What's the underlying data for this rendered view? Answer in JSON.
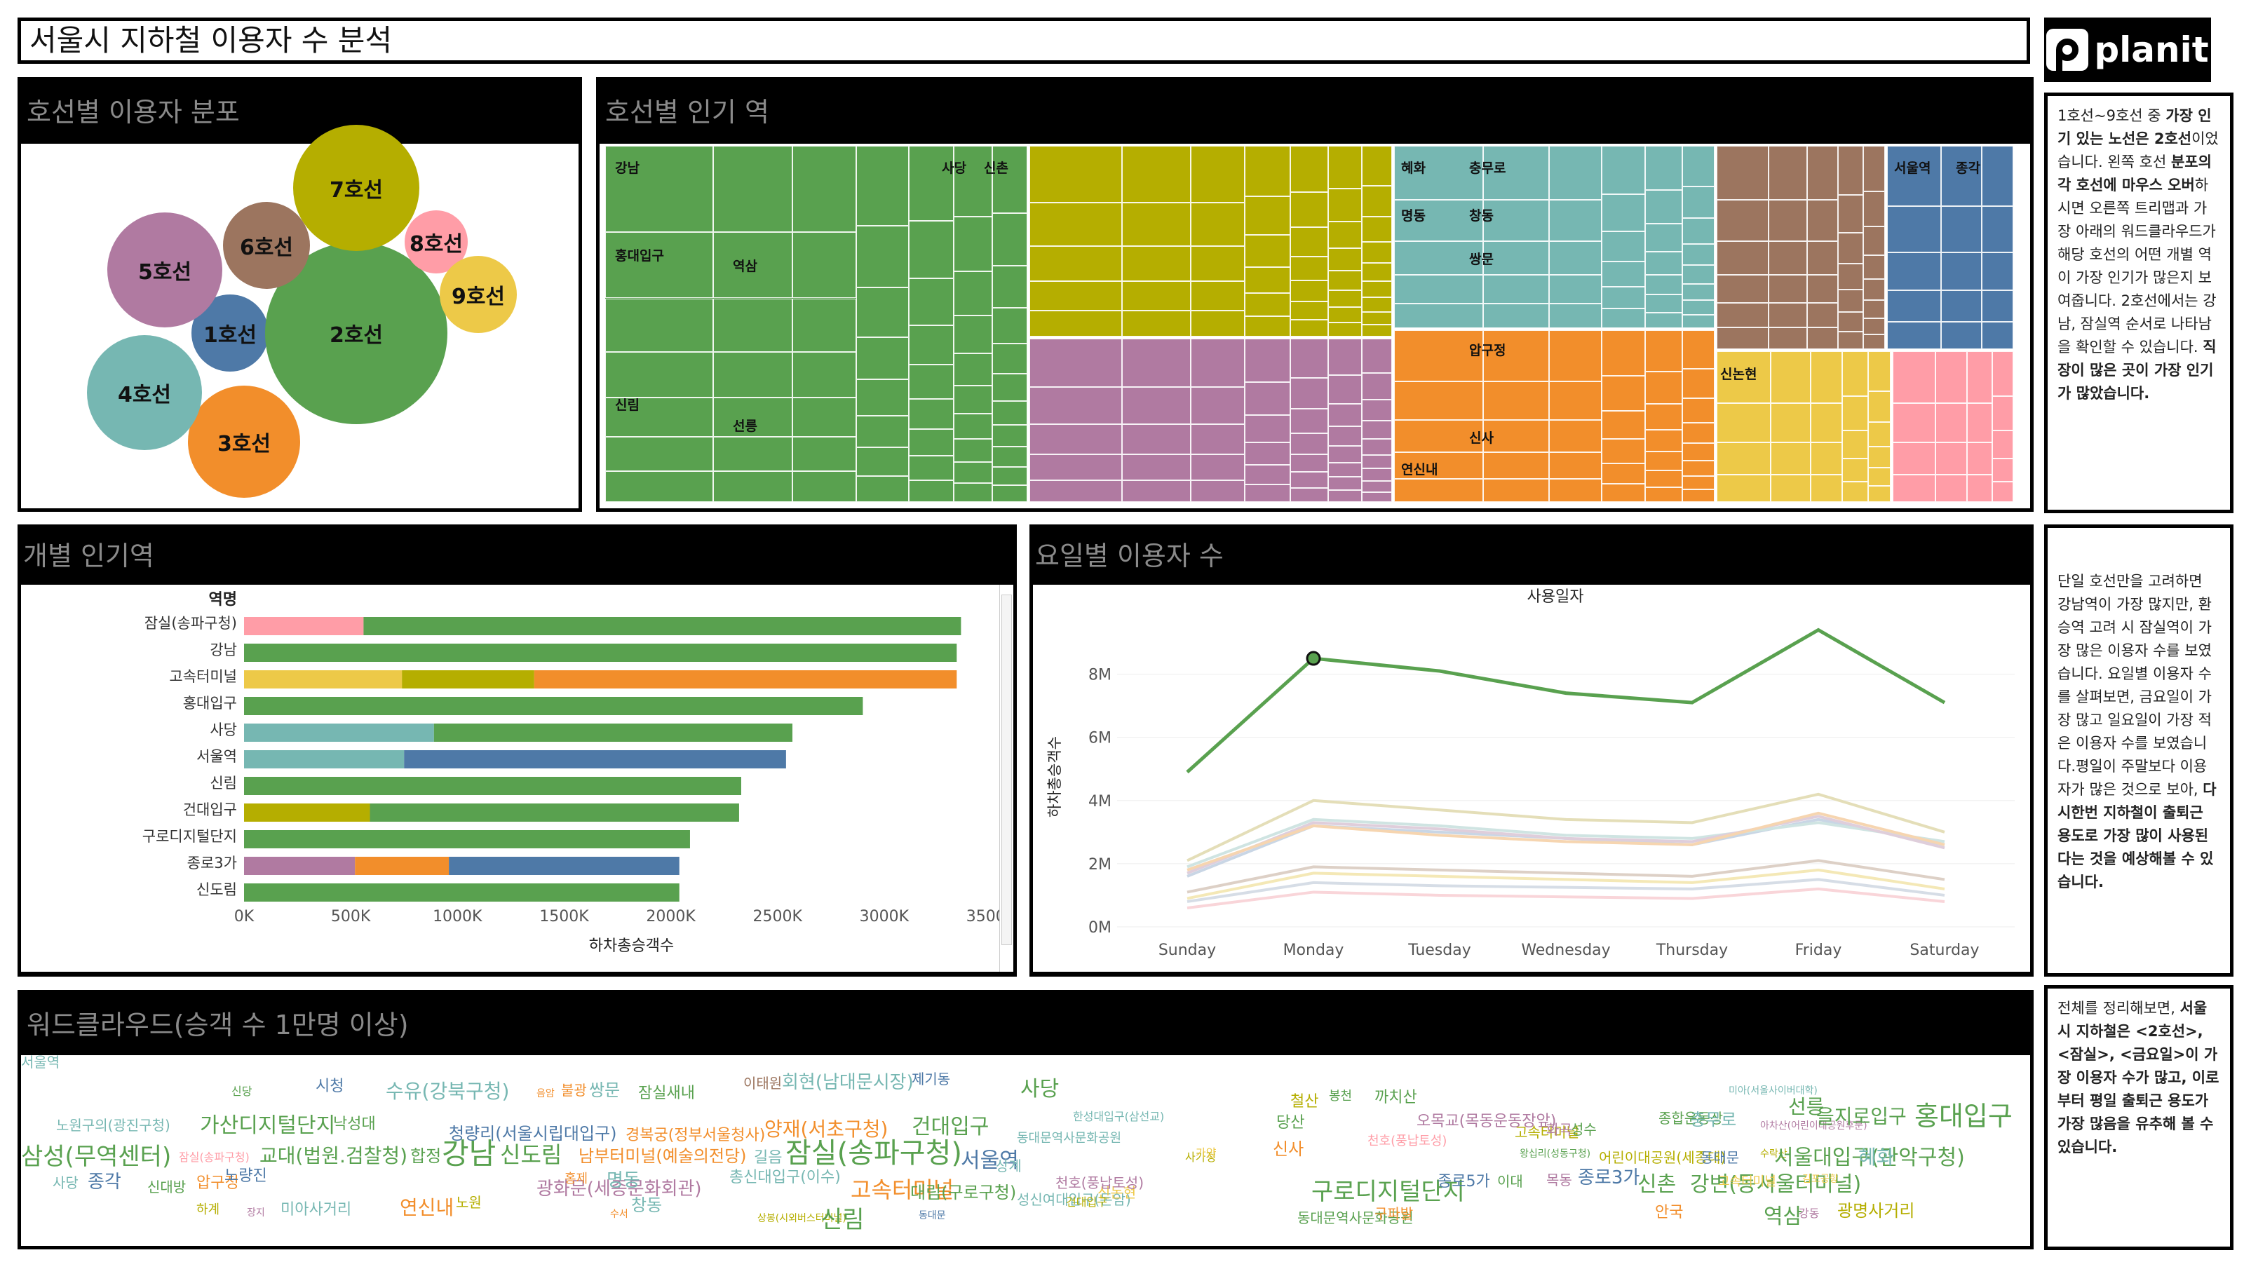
{
  "title": "서울시 지하철 이용자 수 분석",
  "logo": {
    "text": "planit"
  },
  "line_dist": {
    "header": "호선별 이용자 분포",
    "bubbles": [
      {
        "label": "1호선",
        "color": "#4e79a7"
      },
      {
        "label": "2호선",
        "color": "#59a14f"
      },
      {
        "label": "3호선",
        "color": "#f28e2b"
      },
      {
        "label": "4호선",
        "color": "#76b7b2"
      },
      {
        "label": "5호선",
        "color": "#b07aa1"
      },
      {
        "label": "6호선",
        "color": "#9c755f"
      },
      {
        "label": "7호선",
        "color": "#b5ae00"
      },
      {
        "label": "8호선",
        "color": "#ff9da7"
      },
      {
        "label": "9호선",
        "color": "#edc948"
      }
    ]
  },
  "treemap": {
    "header": "호선별 인기 역",
    "labels": [
      "강남",
      "사당",
      "신촌",
      "홍대입구",
      "역삼",
      "신림",
      "선릉",
      "혜화",
      "충무로",
      "명동",
      "창동",
      "쌍문",
      "압구정",
      "신사",
      "연신내",
      "서울역",
      "종각",
      "신논현"
    ]
  },
  "desc1": {
    "parts": [
      {
        "t": "1호선~9호선 중 ",
        "b": false
      },
      {
        "t": "가장 인기 있는 노선은 2호선",
        "b": true
      },
      {
        "t": "이었습니다. 왼쪽 호선 ",
        "b": false
      },
      {
        "t": "분포의 각 호선에 마우스 오버",
        "b": true
      },
      {
        "t": "하시면 오른쪽 트리맵과 가장 아래의 워드클라우드가 해당 호선의 어떤 개별 역이 가장 인기가 많은지 보여줍니다. 2호선에서는 강남, 잠실역 순서로 나타남을 확인할 수 있습니다. ",
        "b": false
      },
      {
        "t": "직장이 많은 곳이 가장 인기가 많았습니다.",
        "b": true
      }
    ]
  },
  "bars": {
    "header": "개별 인기역",
    "axis_header": "역명",
    "xlabel": "하차총승객수",
    "ticks": [
      "0K",
      "500K",
      "1000K",
      "1500K",
      "2000K",
      "2500K",
      "3000K",
      "3500K"
    ],
    "chart_data": {
      "type": "bar",
      "orientation": "horizontal",
      "stacked": true,
      "xlim": [
        0,
        3500000
      ],
      "categories": [
        "잠실(송파구청)",
        "강남",
        "고속터미널",
        "홍대입구",
        "사당",
        "서울역",
        "신림",
        "건대입구",
        "구로디지털단지",
        "종로3가",
        "신도림"
      ],
      "rows": [
        {
          "name": "잠실(송파구청)",
          "segments": [
            {
              "line": "8호선",
              "value": 560000
            },
            {
              "line": "2호선",
              "value": 2800000
            }
          ]
        },
        {
          "name": "강남",
          "segments": [
            {
              "line": "2호선",
              "value": 3340000
            }
          ]
        },
        {
          "name": "고속터미널",
          "segments": [
            {
              "line": "9호선",
              "value": 740000
            },
            {
              "line": "7호선",
              "value": 620000
            },
            {
              "line": "3호선",
              "value": 1980000
            }
          ]
        },
        {
          "name": "홍대입구",
          "segments": [
            {
              "line": "2호선",
              "value": 2900000
            }
          ]
        },
        {
          "name": "사당",
          "segments": [
            {
              "line": "4호선",
              "value": 890000
            },
            {
              "line": "2호선",
              "value": 1680000
            }
          ]
        },
        {
          "name": "서울역",
          "segments": [
            {
              "line": "4호선",
              "value": 750000
            },
            {
              "line": "1호선",
              "value": 1790000
            }
          ]
        },
        {
          "name": "신림",
          "segments": [
            {
              "line": "2호선",
              "value": 2330000
            }
          ]
        },
        {
          "name": "건대입구",
          "segments": [
            {
              "line": "7호선",
              "value": 590000
            },
            {
              "line": "2호선",
              "value": 1730000
            }
          ]
        },
        {
          "name": "구로디지털단지",
          "segments": [
            {
              "line": "2호선",
              "value": 2090000
            }
          ]
        },
        {
          "name": "종로3가",
          "segments": [
            {
              "line": "5호선",
              "value": 520000
            },
            {
              "line": "3호선",
              "value": 440000
            },
            {
              "line": "1호선",
              "value": 1080000
            }
          ]
        },
        {
          "name": "신도림",
          "segments": [
            {
              "line": "2호선",
              "value": 2040000
            }
          ]
        }
      ]
    }
  },
  "weekday": {
    "header": "요일별 이용자 수",
    "chart_title": "사용일자",
    "ylabel": "하차총승객수",
    "yticks": [
      "0M",
      "2M",
      "4M",
      "6M",
      "8M"
    ],
    "chart_data": {
      "type": "line",
      "x": [
        "Sunday",
        "Monday",
        "Tuesday",
        "Wednesday",
        "Thursday",
        "Friday",
        "Saturday"
      ],
      "ylim": [
        0,
        9500000
      ],
      "series": [
        {
          "line": "2호선",
          "color": "#59a14f",
          "values": [
            4900000,
            8500000,
            8100000,
            7400000,
            7100000,
            9400000,
            7100000
          ]
        },
        {
          "line": "7호선",
          "color": "#e4deb8",
          "values": [
            2100000,
            4000000,
            3700000,
            3400000,
            3300000,
            4200000,
            3000000
          ]
        },
        {
          "line": "3호선",
          "color": "#f6d5b0",
          "values": [
            1800000,
            3200000,
            2900000,
            2700000,
            2600000,
            3600000,
            2600000
          ]
        },
        {
          "line": "5호선",
          "color": "#dfcedb",
          "values": [
            1700000,
            3300000,
            3100000,
            2800000,
            2700000,
            3500000,
            2500000
          ]
        },
        {
          "line": "4호선",
          "color": "#cfe4e2",
          "values": [
            1900000,
            3400000,
            3200000,
            2900000,
            2800000,
            3300000,
            2700000
          ]
        },
        {
          "line": "1호선",
          "color": "#c9d6e5",
          "values": [
            1600000,
            3200000,
            3000000,
            2800000,
            2600000,
            3400000,
            2600000
          ]
        },
        {
          "line": "6호선",
          "color": "#ddd0c6",
          "values": [
            1100000,
            1900000,
            1800000,
            1700000,
            1600000,
            2100000,
            1500000
          ]
        },
        {
          "line": "9호선",
          "color": "#f4e8b6",
          "values": [
            900000,
            1700000,
            1600000,
            1500000,
            1400000,
            1800000,
            1200000
          ]
        },
        {
          "line": "8호선",
          "color": "#f9d5d9",
          "values": [
            600000,
            1100000,
            1000000,
            950000,
            900000,
            1200000,
            800000
          ]
        },
        {
          "line": "기타",
          "color": "#d6dde6",
          "values": [
            800000,
            1400000,
            1300000,
            1250000,
            1200000,
            1500000,
            1000000
          ]
        }
      ]
    }
  },
  "desc2": {
    "parts": [
      {
        "t": "단일 호선만을 고려하면 강남역이 가장 많지만, 환승역 고려 시 잠실역이 가장 많은 이용자 수를 보였습니다. 요일별 이용자 수를 살펴보면, 금요일이 가장 많고 일요일이 가장 적은 이용자 수를 보였습니다.평일이 주말보다 이용자가 많은 것으로 보아, ",
        "b": false
      },
      {
        "t": "다시한번 지하철이 출퇴근 용도로 가장 많이 사용된다는 것을 예상해볼 수 있습니다.",
        "b": true
      }
    ]
  },
  "desc3": {
    "parts": [
      {
        "t": "전체를 정리해보면, ",
        "b": false
      },
      {
        "t": "서울시 지하철은 <2호선>, <잠실>, <금요일>이 가장 이용자 수가 많고, 이로부터 평일 출퇴근 용도가 가장 많음을 유추해 볼 수 있습니다.",
        "b": true
      }
    ]
  },
  "wordcloud": {
    "header": "워드클라우드(승객 수 1만명 이상)",
    "words": [
      {
        "t": "신당",
        "c": "#59a14f",
        "s": 16
      },
      {
        "t": "시청",
        "c": "#4e79a7",
        "s": 22
      },
      {
        "t": "수유(강북구청)",
        "c": "#76b7b2",
        "s": 28
      },
      {
        "t": "음암",
        "c": "#f28e2b",
        "s": 14
      },
      {
        "t": "불광",
        "c": "#f28e2b",
        "s": 20
      },
      {
        "t": "쌍문",
        "c": "#76b7b2",
        "s": 24
      },
      {
        "t": "잠실새내",
        "c": "#59a14f",
        "s": 22
      },
      {
        "t": "이태원",
        "c": "#9c755f",
        "s": 20
      },
      {
        "t": "회현(남대문시장)",
        "c": "#76b7b2",
        "s": 26
      },
      {
        "t": "제기동",
        "c": "#4e79a7",
        "s": 20
      },
      {
        "t": "노원구의(광진구청)",
        "c": "#76b7b2",
        "s": 20
      },
      {
        "t": "가산디지털단지",
        "c": "#59a14f",
        "s": 30
      },
      {
        "t": "낙성대",
        "c": "#59a14f",
        "s": 22
      },
      {
        "t": "청량리(서울시립대입구)",
        "c": "#4e79a7",
        "s": 24
      },
      {
        "t": "경복궁(정부서울청사)",
        "c": "#f28e2b",
        "s": 22
      },
      {
        "t": "양재(서초구청)",
        "c": "#f28e2b",
        "s": 28
      },
      {
        "t": "건대입구",
        "c": "#59a14f",
        "s": 30
      },
      {
        "t": "삼성(무역센터)",
        "c": "#59a14f",
        "s": 34
      },
      {
        "t": "잠실(송파구청)",
        "c": "#ff9da7",
        "s": 16
      },
      {
        "t": "교대(법원.검찰청)",
        "c": "#59a14f",
        "s": 28
      },
      {
        "t": "합정",
        "c": "#59a14f",
        "s": 24
      },
      {
        "t": "강남",
        "c": "#59a14f",
        "s": 42
      },
      {
        "t": "신도림",
        "c": "#59a14f",
        "s": 32
      },
      {
        "t": "남부터미널(예술의전당)",
        "c": "#f28e2b",
        "s": 24
      },
      {
        "t": "길음",
        "c": "#76b7b2",
        "s": 22
      },
      {
        "t": "잠실(송파구청)",
        "c": "#59a14f",
        "s": 40
      },
      {
        "t": "서울역",
        "c": "#4e79a7",
        "s": 30
      },
      {
        "t": "사당",
        "c": "#59a14f",
        "s": 30
      },
      {
        "t": "동대문역사문화공원",
        "c": "#76b7b2",
        "s": 18
      },
      {
        "t": "한성대입구(삼선교)",
        "c": "#76b7b2",
        "s": 16
      },
      {
        "t": "사당",
        "c": "#76b7b2",
        "s": 20
      },
      {
        "t": "종각",
        "c": "#4e79a7",
        "s": 26
      },
      {
        "t": "신대방",
        "c": "#59a14f",
        "s": 20
      },
      {
        "t": "압구정",
        "c": "#f28e2b",
        "s": 22
      },
      {
        "t": "노량진",
        "c": "#4e79a7",
        "s": 22
      },
      {
        "t": "광화문(세종문화회관)",
        "c": "#b07aa1",
        "s": 26
      },
      {
        "t": "홍제",
        "c": "#f28e2b",
        "s": 18
      },
      {
        "t": "명동",
        "c": "#76b7b2",
        "s": 26
      },
      {
        "t": "총신대입구(이수)",
        "c": "#76b7b2",
        "s": 22
      },
      {
        "t": "고속터미널",
        "c": "#f28e2b",
        "s": 32
      },
      {
        "t": "대림(구로구청)",
        "c": "#59a14f",
        "s": 24
      },
      {
        "t": "상계",
        "c": "#76b7b2",
        "s": 20
      },
      {
        "t": "사가정",
        "c": "#b5ae00",
        "s": 16
      },
      {
        "t": "성신여대입구(돈암)",
        "c": "#76b7b2",
        "s": 20
      },
      {
        "t": "신논현",
        "c": "#edc948",
        "s": 20
      },
      {
        "t": "가양",
        "c": "#edc948",
        "s": 16
      },
      {
        "t": "하계",
        "c": "#b5ae00",
        "s": 18
      },
      {
        "t": "장지",
        "c": "#b07aa1",
        "s": 14
      },
      {
        "t": "미아사거리",
        "c": "#76b7b2",
        "s": 22
      },
      {
        "t": "연신내",
        "c": "#f28e2b",
        "s": 28
      },
      {
        "t": "노원",
        "c": "#b5ae00",
        "s": 20
      },
      {
        "t": "수서",
        "c": "#f28e2b",
        "s": 14
      },
      {
        "t": "창동",
        "c": "#76b7b2",
        "s": 24
      },
      {
        "t": "상봉(시외버스터미널)",
        "c": "#b5ae00",
        "s": 14
      },
      {
        "t": "신림",
        "c": "#59a14f",
        "s": 34
      },
      {
        "t": "동대문",
        "c": "#4e79a7",
        "s": 14
      },
      {
        "t": "천호(풍납토성)",
        "c": "#b07aa1",
        "s": 20
      },
      {
        "t": "건대입구",
        "c": "#b5ae00",
        "s": 16
      },
      {
        "t": "철산",
        "c": "#b5ae00",
        "s": 22
      },
      {
        "t": "봉천",
        "c": "#59a14f",
        "s": 18
      },
      {
        "t": "까치산",
        "c": "#59a14f",
        "s": 22
      },
      {
        "t": "당산",
        "c": "#59a14f",
        "s": 22
      },
      {
        "t": "오목교(목동운동장앞)",
        "c": "#b07aa1",
        "s": 22
      },
      {
        "t": "신사",
        "c": "#f28e2b",
        "s": 24
      },
      {
        "t": "천호(풍납토성)",
        "c": "#ff9da7",
        "s": 18
      },
      {
        "t": "구로디지털단지",
        "c": "#59a14f",
        "s": 34
      },
      {
        "t": "동대문역사문화공원",
        "c": "#59a14f",
        "s": 20
      },
      {
        "t": "구파발",
        "c": "#f28e2b",
        "s": 20
      },
      {
        "t": "종로5가",
        "c": "#4e79a7",
        "s": 22
      },
      {
        "t": "고속터미널",
        "c": "#b5ae00",
        "s": 20
      },
      {
        "t": "화곡",
        "c": "#b07aa1",
        "s": 20
      },
      {
        "t": "성수",
        "c": "#59a14f",
        "s": 20
      },
      {
        "t": "종합운동장",
        "c": "#59a14f",
        "s": 20
      },
      {
        "t": "충무로",
        "c": "#76b7b2",
        "s": 24
      },
      {
        "t": "미아(서울사이버대학)",
        "c": "#76b7b2",
        "s": 14
      },
      {
        "t": "아차산(어린이대공원후문)",
        "c": "#b07aa1",
        "s": 14
      },
      {
        "t": "선릉",
        "c": "#59a14f",
        "s": 28
      },
      {
        "t": "을지로입구",
        "c": "#59a14f",
        "s": 28
      },
      {
        "t": "홍대입구",
        "c": "#59a14f",
        "s": 38
      },
      {
        "t": "이대",
        "c": "#59a14f",
        "s": 20
      },
      {
        "t": "목동",
        "c": "#b07aa1",
        "s": 20
      },
      {
        "t": "종로3가",
        "c": "#4e79a7",
        "s": 26
      },
      {
        "t": "왕십리(성동구청)",
        "c": "#59a14f",
        "s": 14
      },
      {
        "t": "어린이대공원(세종대)",
        "c": "#b5ae00",
        "s": 20
      },
      {
        "t": "동대문",
        "c": "#4e79a7",
        "s": 20
      },
      {
        "t": "수락산",
        "c": "#b5ae00",
        "s": 14
      },
      {
        "t": "서울대입구(관악구청)",
        "c": "#59a14f",
        "s": 30
      },
      {
        "t": "혜화",
        "c": "#76b7b2",
        "s": 28
      },
      {
        "t": "신촌",
        "c": "#59a14f",
        "s": 30
      },
      {
        "t": "강변(동서울터미널)",
        "c": "#59a14f",
        "s": 30
      },
      {
        "t": "고속터미널",
        "c": "#edc948",
        "s": 18
      },
      {
        "t": "김포공항",
        "c": "#edc948",
        "s": 14
      },
      {
        "t": "안국",
        "c": "#f28e2b",
        "s": 22
      },
      {
        "t": "역삼",
        "c": "#59a14f",
        "s": 30
      },
      {
        "t": "강동",
        "c": "#b07aa1",
        "s": 16
      },
      {
        "t": "광명사거리",
        "c": "#b5ae00",
        "s": 24
      },
      {
        "t": "서울역",
        "c": "#76b7b2",
        "s": 20
      }
    ]
  }
}
